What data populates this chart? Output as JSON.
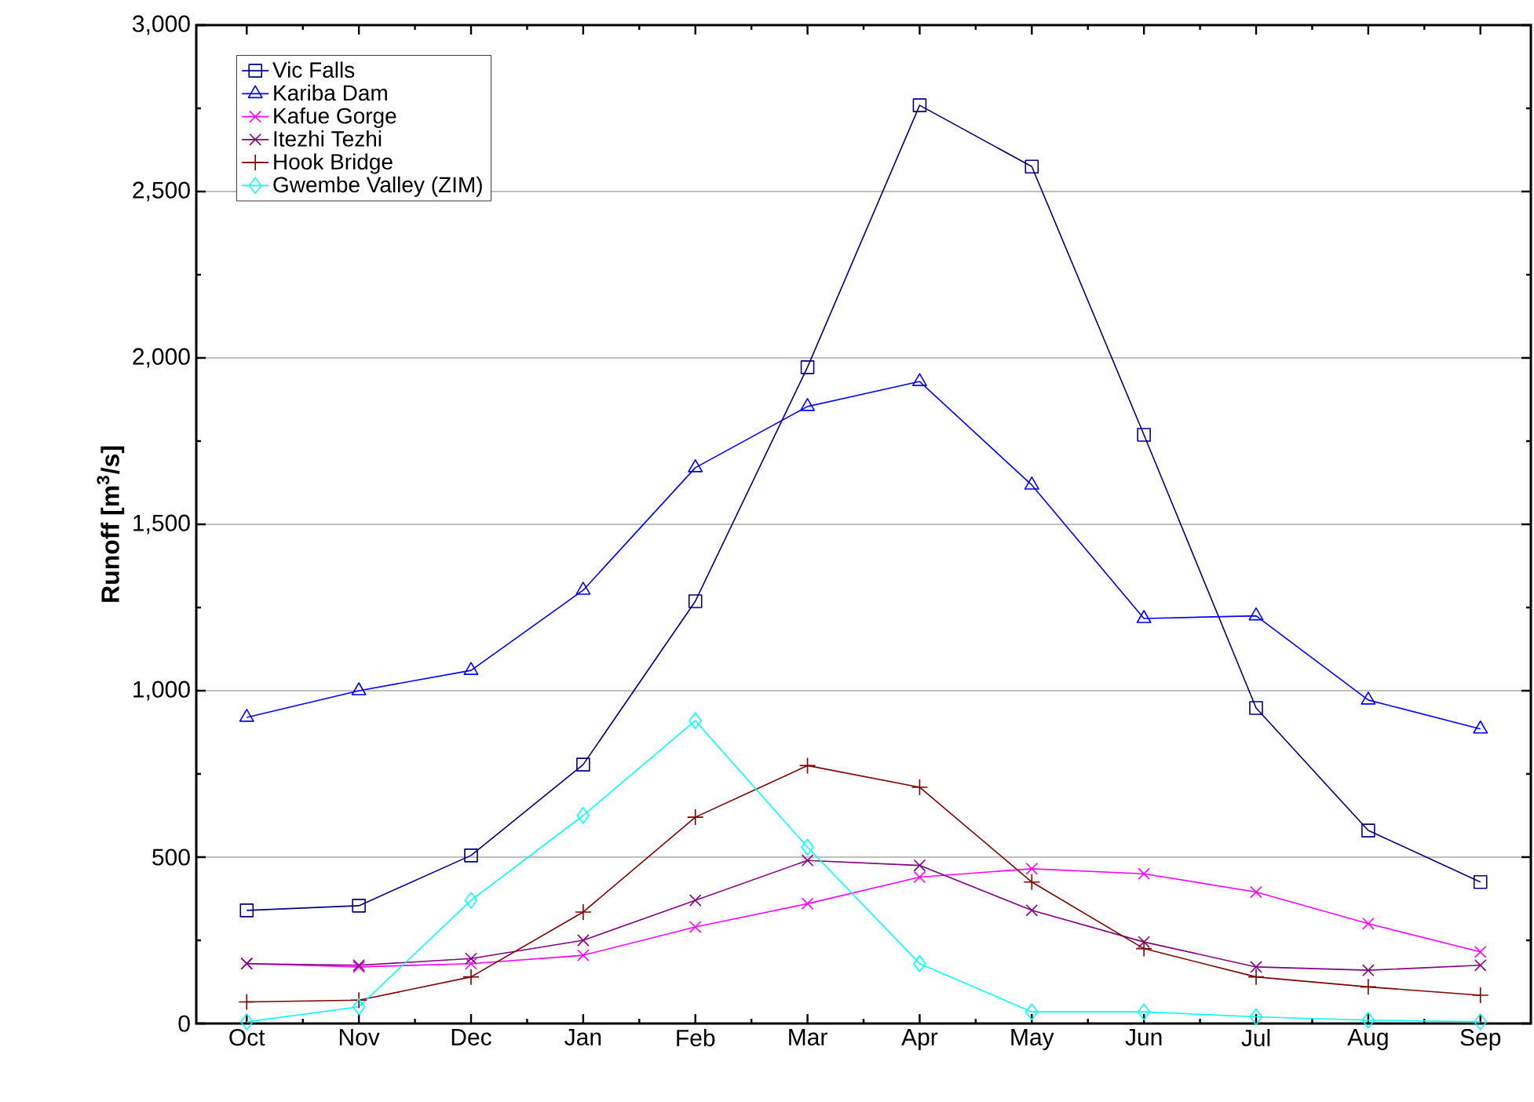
{
  "chart_data": {
    "type": "line",
    "ylabel": "Runoff [m$^{3}$/s]",
    "categories": [
      "Oct",
      "Nov",
      "Dec",
      "Jan",
      "Feb",
      "Mar",
      "Apr",
      "May",
      "Jun",
      "Jul",
      "Aug",
      "Sep"
    ],
    "ylim": [
      0,
      3000
    ],
    "yticks": [
      0,
      500,
      {
        "value": 1000,
        "label": "1,000"
      },
      {
        "value": 1500,
        "label": "1,500"
      },
      {
        "value": 2000,
        "label": "2,000"
      },
      {
        "value": 2500,
        "label": "2,500"
      },
      {
        "value": 3000,
        "label": "3,000"
      }
    ],
    "grid": "y",
    "legend": "top left",
    "series": [
      {
        "name": "Vic Falls",
        "color": "#000080",
        "marker": "square",
        "values": [
          340,
          354,
          505,
          778,
          1269,
          1972,
          2759,
          2575,
          1769,
          948,
          580,
          425
        ]
      },
      {
        "name": "Kariba Dam",
        "color": "#0000ff",
        "marker": "triangle",
        "values": [
          920,
          1000,
          1061,
          1302,
          1670,
          1854,
          1929,
          1618,
          1217,
          1225,
          972,
          885
        ]
      },
      {
        "name": "Kafue Gorge",
        "color": "#ff00ff",
        "marker": "cross",
        "values": [
          180,
          170,
          180,
          205,
          290,
          360,
          440,
          465,
          450,
          395,
          300,
          215
        ]
      },
      {
        "name": "Itezhi Tezhi",
        "color": "#800080",
        "marker": "cross",
        "values": [
          180,
          175,
          195,
          250,
          370,
          490,
          475,
          340,
          245,
          170,
          160,
          175
        ]
      },
      {
        "name": "Hook Bridge",
        "color": "#800000",
        "marker": "plus",
        "values": [
          65,
          70,
          140,
          335,
          620,
          775,
          710,
          425,
          225,
          140,
          110,
          85
        ]
      },
      {
        "name": "Gwembe Valley (ZIM)",
        "color": "#00ffff",
        "marker": "diamond",
        "values": [
          5,
          50,
          370,
          625,
          910,
          530,
          180,
          35,
          35,
          20,
          10,
          5
        ]
      }
    ]
  }
}
